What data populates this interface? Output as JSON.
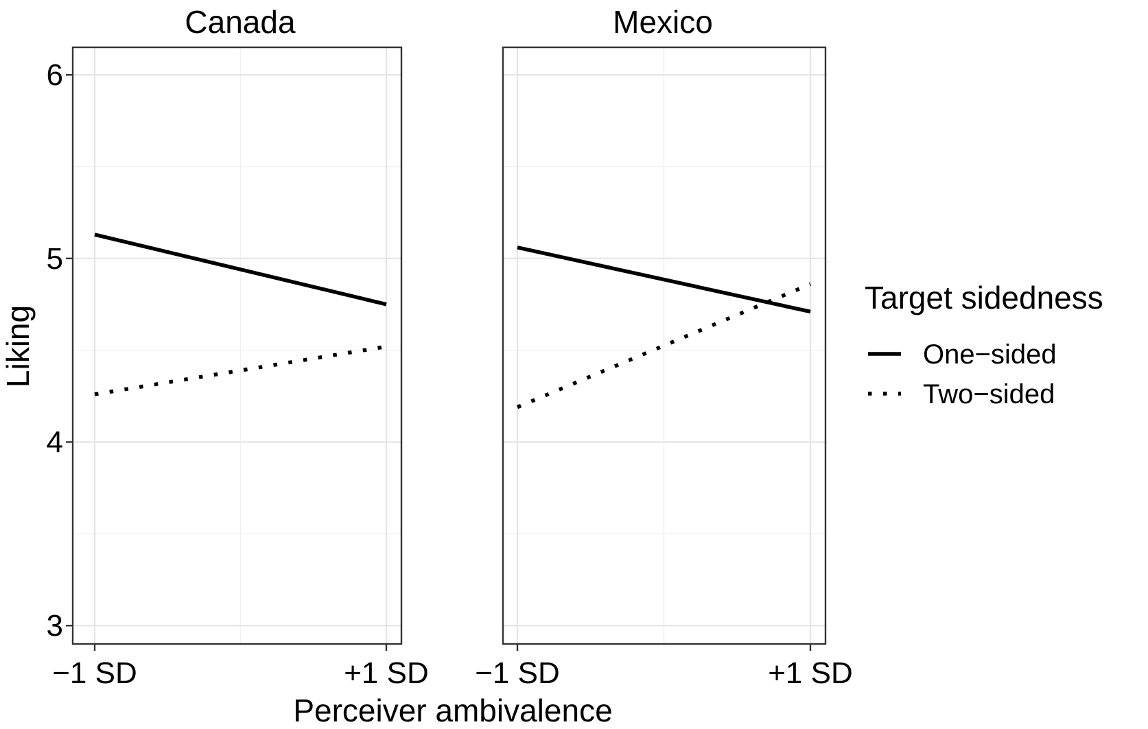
{
  "chart_data": {
    "type": "line",
    "facets": [
      "Canada",
      "Mexico"
    ],
    "x_categories": [
      "−1 SD",
      "+1 SD"
    ],
    "xlabel": "Perceiver ambivalence",
    "ylabel": "Liking",
    "ylim": [
      2.9,
      6.15
    ],
    "y_ticks": [
      3,
      4,
      5,
      6
    ],
    "y_tick_labels": [
      "3",
      "4",
      "5",
      "6"
    ],
    "legend": {
      "title": "Target sidedness",
      "position": "right",
      "entries": [
        "One−sided",
        "Two−sided"
      ]
    },
    "series": [
      {
        "name": "One−sided",
        "style": "solid",
        "values": {
          "Canada": [
            5.13,
            4.75
          ],
          "Mexico": [
            5.06,
            4.71
          ]
        }
      },
      {
        "name": "Two−sided",
        "style": "dotted",
        "values": {
          "Canada": [
            4.26,
            4.52
          ],
          "Mexico": [
            4.19,
            4.86
          ]
        }
      }
    ],
    "colors": {
      "line": "#000000",
      "grid": "#e6e6e6",
      "border": "#333333"
    }
  }
}
